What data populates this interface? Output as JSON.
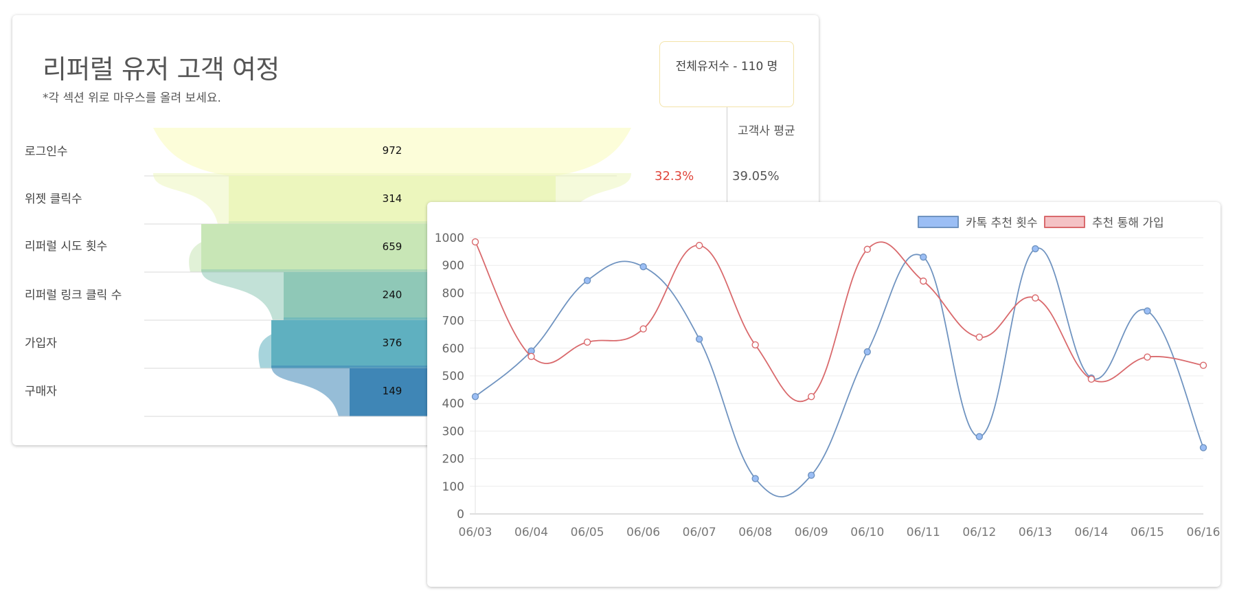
{
  "funnel": {
    "title": "리퍼럴 유저 고객 여정",
    "subtitle": "*각 섹션 위로 마우스를 올려 보세요.",
    "total_users": "전체유저수 - 110 명",
    "avg_header": "고객사 평균",
    "stage_rate": "32.3%",
    "avg_rate": "39.05%",
    "stages": [
      {
        "label": "로그인수",
        "value": "972",
        "color": "#fcfdd9"
      },
      {
        "label": "위젯 클릭수",
        "value": "314",
        "color": "#ecf6bd"
      },
      {
        "label": "리퍼럴 시도 횟수",
        "value": "659",
        "color": "#c8e6b6"
      },
      {
        "label": "리퍼럴 링크 클릭 수",
        "value": "240",
        "color": "#8fc8b7"
      },
      {
        "label": "가입자",
        "value": "376",
        "color": "#5fb0c0"
      },
      {
        "label": "구매자",
        "value": "149",
        "color": "#3f86b6"
      }
    ]
  },
  "chart_data": {
    "type": "line",
    "categories": [
      "06/03",
      "06/04",
      "06/05",
      "06/06",
      "06/07",
      "06/08",
      "06/09",
      "06/10",
      "06/11",
      "06/12",
      "06/13",
      "06/14",
      "06/15",
      "06/16"
    ],
    "ylim": [
      0,
      1000
    ],
    "yticks": [
      0,
      100,
      200,
      300,
      400,
      500,
      600,
      700,
      800,
      900,
      1000
    ],
    "legend_position": "top-right",
    "grid": true,
    "series": [
      {
        "name": "카톡 추천 횟수",
        "color": "#6f93c0",
        "fill": "#9bbef5",
        "values": [
          425,
          590,
          845,
          895,
          633,
          128,
          140,
          587,
          930,
          280,
          960,
          492,
          735,
          240
        ]
      },
      {
        "name": "추천 통해 가입",
        "color": "#d9696c",
        "fill": "#f4c2c5",
        "values": [
          985,
          570,
          622,
          670,
          972,
          612,
          425,
          958,
          843,
          640,
          782,
          488,
          568,
          538
        ]
      }
    ]
  }
}
